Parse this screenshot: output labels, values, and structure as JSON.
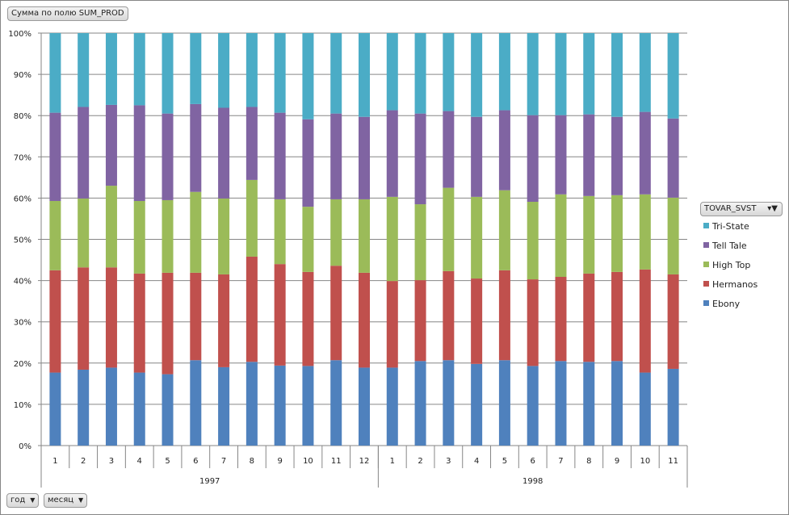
{
  "field_button": "Сумма по полю SUM_PROD",
  "legend_button": "TOVAR_SVST",
  "axis_buttons": [
    {
      "label": "год"
    },
    {
      "label": "месяц"
    }
  ],
  "chart_data": {
    "type": "bar",
    "stacked": "percent",
    "title": "",
    "xlabel": "",
    "ylabel": "",
    "ylim": [
      0,
      100
    ],
    "yticks": [
      "0%",
      "10%",
      "20%",
      "30%",
      "40%",
      "50%",
      "60%",
      "70%",
      "80%",
      "90%",
      "100%"
    ],
    "grid": true,
    "legend_position": "right",
    "groups": [
      {
        "label": "1997",
        "categories": [
          "1",
          "2",
          "3",
          "4",
          "5",
          "6",
          "7",
          "8",
          "9",
          "10",
          "11",
          "12"
        ]
      },
      {
        "label": "1998",
        "categories": [
          "1",
          "2",
          "3",
          "4",
          "5",
          "6",
          "7",
          "8",
          "9",
          "10",
          "11"
        ]
      }
    ],
    "series": [
      {
        "name": "Ebony",
        "color": "#4f81bd",
        "values": [
          17.7,
          18.4,
          18.9,
          17.7,
          17.3,
          20.7,
          19.0,
          20.3,
          19.4,
          19.3,
          20.7,
          18.9,
          18.9,
          20.5,
          20.7,
          19.8,
          20.7,
          19.3,
          20.5,
          20.3,
          20.5,
          17.7,
          18.6
        ]
      },
      {
        "name": "Hermanos",
        "color": "#c0504d",
        "values": [
          24.8,
          24.8,
          24.3,
          24.0,
          24.6,
          21.2,
          22.5,
          25.5,
          24.6,
          22.8,
          22.9,
          23.0,
          21.0,
          19.6,
          21.6,
          20.7,
          21.8,
          21.0,
          20.4,
          21.4,
          21.6,
          25.0,
          22.9
        ]
      },
      {
        "name": "High Top",
        "color": "#9bbb59",
        "values": [
          16.8,
          16.7,
          19.8,
          17.6,
          17.6,
          19.6,
          18.4,
          18.6,
          15.7,
          15.8,
          16.1,
          17.8,
          20.4,
          18.4,
          20.2,
          19.8,
          19.4,
          18.8,
          20.0,
          18.8,
          18.6,
          18.2,
          18.6
        ]
      },
      {
        "name": "Tell Tale",
        "color": "#8064a2",
        "values": [
          21.4,
          22.2,
          19.6,
          23.2,
          21.0,
          21.3,
          22.0,
          17.7,
          21.0,
          21.2,
          20.8,
          20.0,
          21.0,
          22.0,
          18.6,
          19.4,
          19.4,
          21.0,
          19.2,
          19.8,
          19.0,
          20.0,
          19.2
        ]
      },
      {
        "name": "Tri-State",
        "color": "#4bacc6",
        "values": [
          19.3,
          17.9,
          17.4,
          17.5,
          19.5,
          17.2,
          18.1,
          17.9,
          19.3,
          20.9,
          19.5,
          20.3,
          18.7,
          19.5,
          18.9,
          20.3,
          18.7,
          19.9,
          19.9,
          19.7,
          20.3,
          19.1,
          20.7
        ]
      }
    ],
    "legend_order": [
      "Tri-State",
      "Tell Tale",
      "High Top",
      "Hermanos",
      "Ebony"
    ]
  }
}
